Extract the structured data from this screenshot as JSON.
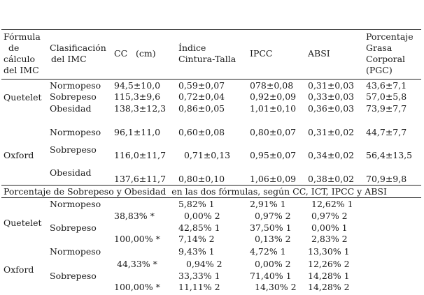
{
  "header": {
    "formula": [
      "Fórmula",
      "de",
      "cálculo",
      "del IMC"
    ],
    "classification": [
      "Clasificación",
      "del IMC"
    ],
    "cc": "CC   (cm)",
    "ict": [
      "Índice",
      "Cintura-Talla"
    ],
    "ipcc": "IPCC",
    "absi": "ABSI",
    "pgc": [
      "Porcentaje",
      "Grasa",
      "Corporal",
      "(PGC)"
    ]
  },
  "quetelet": {
    "label": "Quetelet",
    "rows": [
      {
        "clase": "Normopeso",
        "cc": "94,5±10,0",
        "ict": "0,59±0,07",
        "ipcc": "078±0,08",
        "absi": "0,31±0,03",
        "pgc": "43,6±7,1"
      },
      {
        "clase": "Sobrepeso",
        "cc": "115,3±9,6",
        "ict": "0,72±0,04",
        "ipcc": "0,92±0,09",
        "absi": "0,33±0,03",
        "pgc": "57,0±5,8"
      },
      {
        "clase": "Obesidad",
        "cc": "138,3±12,3",
        "ict": "0,86±0,05",
        "ipcc": "1,01±0,10",
        "absi": "0,36±0,03",
        "pgc": "73,9±7,7"
      }
    ]
  },
  "oxford": {
    "label": "Oxford",
    "rows": [
      {
        "clase": "Normopeso",
        "cc": "96,1±11,0",
        "ict": "0,60±0,08",
        "ipcc": "0,80±0,07",
        "absi": "0,31±0,02",
        "pgc": "44,7±7,7"
      },
      {
        "clase": "Sobrepeso",
        "cc": "116,0±11,7",
        "ict": "0,71±0,13",
        "ipcc": "0,95±0,07",
        "absi": "0,34±0,02",
        "pgc": "56,4±13,5"
      },
      {
        "clase": "Obesidad",
        "cc": "137,6±11,7",
        "ict": "0,80±0,10",
        "ipcc": "1,06±0,09",
        "absi": "0,38±0,02",
        "pgc": "70,9±9,8"
      }
    ]
  },
  "section2": {
    "title": "Porcentaje de Sobrepeso y Obesidad  en las dos fórmulas, según CC, ICT, IPCC y ABSI",
    "quetelet": {
      "label": "Quetelet",
      "normo": "Normopeso",
      "sobre": "Sobrepeso",
      "cc": [
        "38,83% *",
        "100,00% *"
      ],
      "ict": [
        "5,82% 1",
        "0,00% 2",
        "42,85% 1",
        "7,14% 2"
      ],
      "ipcc": [
        "2,91% 1",
        "0,97% 2",
        "37,50% 1",
        "0,13% 2"
      ],
      "absi": [
        "12,62% 1",
        "0,97% 2",
        "0,00% 1",
        "2,83% 2"
      ]
    },
    "oxford": {
      "label": "Oxford",
      "normo": "Normopeso",
      "sobre": "Sobrepeso",
      "cc": [
        "44,33% *",
        "100,00% *"
      ],
      "ict": [
        "9,43% 1",
        "0,94% 2",
        "33,33% 1",
        "11,11% 2"
      ],
      "ipcc": [
        "4,72% 1",
        "0,00% 2",
        "71,40% 1",
        "14,30% 2"
      ],
      "absi": [
        "13,30% 1",
        "12,26% 2",
        "14,28% 1",
        "14,28% 2"
      ]
    }
  }
}
